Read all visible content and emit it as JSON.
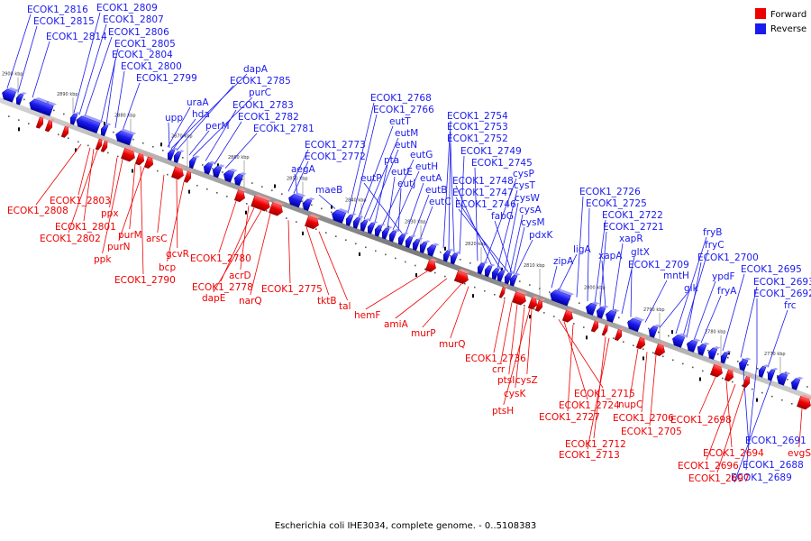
{
  "colors": {
    "forward": "#ee0000",
    "reverse": "#1a1aee",
    "forward_dark": "#990000",
    "reverse_dark": "#000099",
    "backbone": "#8a8a8a",
    "dots": "#555555"
  },
  "legend": {
    "forward_label": "Forward",
    "reverse_label": "Reverse"
  },
  "caption": "Escherichia coli IHE3034, complete genome. - 0..5108383",
  "scale_ticks": [
    "2900 kbp",
    "2890 kbp",
    "2880 kbp",
    "2870 kbp",
    "2860 kbp",
    "2850 kbp",
    "2840 kbp",
    "2830 kbp",
    "2820 kbp",
    "2810 kbp",
    "2800 kbp",
    "2790 kbp",
    "2780 kbp",
    "2770 kbp"
  ],
  "reverse_labels": [
    "ECOK1_2816",
    "ECOK1_2815",
    "ECOK1_2814",
    "ECOK1_2809",
    "ECOK1_2807",
    "ECOK1_2806",
    "ECOK1_2805",
    "ECOK1_2804",
    "ECOK1_2800",
    "ECOK1_2799",
    "dapA",
    "ECOK1_2785",
    "purC",
    "ECOK1_2783",
    "ECOK1_2782",
    "ECOK1_2781",
    "uraA",
    "hda",
    "upp",
    "perM",
    "ECOK1_2773",
    "ECOK1_2772",
    "aegA",
    "maeB",
    "ECOK1_2768",
    "ECOK1_2766",
    "eutT",
    "eutM",
    "eutN",
    "pta",
    "eutG",
    "eutE",
    "eutH",
    "eutJ",
    "eutA",
    "eutP",
    "eutB",
    "eutC",
    "ECOK1_2754",
    "ECOK1_2753",
    "ECOK1_2752",
    "ECOK1_2749",
    "ECOK1_2745",
    "cysP",
    "ECOK1_2748",
    "cysT",
    "ECOK1_2747",
    "cysW",
    "ECOK1_2746",
    "cysA",
    "fabG",
    "cysM",
    "pdxK",
    "zipA",
    "ligA",
    "ECOK1_2726",
    "ECOK1_2725",
    "ECOK1_2722",
    "ECOK1_2721",
    "xapA",
    "xapR",
    "gltX",
    "ECOK1_2709",
    "mntH",
    "glk",
    "fryB",
    "fryC",
    "ECOK1_2700",
    "ypdF",
    "fryA",
    "ECOK1_2695",
    "ECOK1_2693",
    "ECOK1_2692",
    "frc",
    "ECOK1_2691",
    "ECOK1_2688",
    "ECOK1_2689"
  ],
  "forward_labels": [
    "ECOK1_2803",
    "ECOK1_2808",
    "ECOK1_2801",
    "ECOK1_2802",
    "ppx",
    "purM",
    "purN",
    "ppk",
    "arsC",
    "gcvR",
    "bcp",
    "ECOK1_2790",
    "ECOK1_2780",
    "acrD",
    "ECOK1_2778",
    "dapE",
    "narQ",
    "ECOK1_2775",
    "tktB",
    "tal",
    "hemF",
    "amiA",
    "murP",
    "murQ",
    "ECOK1_2736",
    "crr",
    "ptsI",
    "cysZ",
    "cysK",
    "ptsH",
    "ECOK1_2715",
    "ECOK1_2724",
    "ECOK1_2727",
    "nupC",
    "ECOK1_2706",
    "ECOK1_2705",
    "ECOK1_2712",
    "ECOK1_2713",
    "ECOK1_2698",
    "ECOK1_2694",
    "ECOK1_2696",
    "ECOK1_2697",
    "evgS"
  ]
}
